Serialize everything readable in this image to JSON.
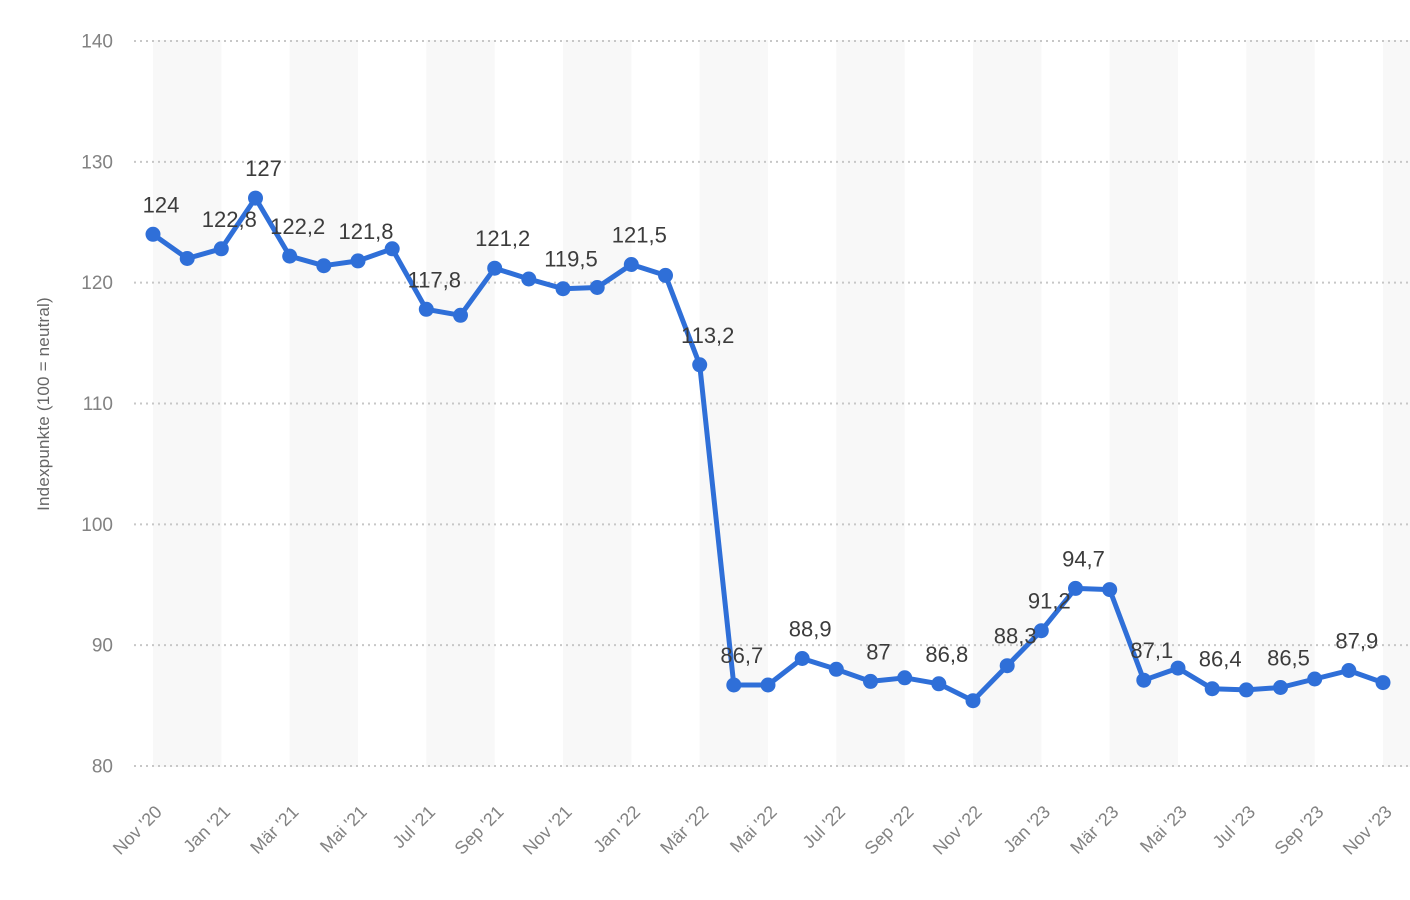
{
  "chart_data": {
    "type": "line",
    "title": "",
    "xlabel": "",
    "ylabel": "Indexpunkte (100 = neutral)",
    "ylim": [
      80,
      140
    ],
    "yticks": [
      80,
      90,
      100,
      110,
      120,
      130,
      140
    ],
    "grid": "dotted-horizontal",
    "legend": "none",
    "x_categories": [
      "Nov '20",
      "Dez '20",
      "Jan '21",
      "Feb '21",
      "Mär '21",
      "Apr '21",
      "Mai '21",
      "Jun '21",
      "Jul '21",
      "Aug '21",
      "Sep '21",
      "Okt '21",
      "Nov '21",
      "Dez '21",
      "Jan '22",
      "Feb '22",
      "Mär '22",
      "Apr '22",
      "Mai '22",
      "Jun '22",
      "Jul '22",
      "Aug '22",
      "Sep '22",
      "Okt '22",
      "Nov '22",
      "Dez '22",
      "Jan '23",
      "Feb '23",
      "Mär '23",
      "Apr '23",
      "Mai '23",
      "Jun '23",
      "Jul '23",
      "Aug '23",
      "Sep '23",
      "Okt '23",
      "Nov '23"
    ],
    "x_tick_every": 2,
    "x_tick_labels": [
      "Nov '20",
      "Jan '21",
      "Mär '21",
      "Mai '21",
      "Jul '21",
      "Sep '21",
      "Nov '21",
      "Jan '22",
      "Mär '22",
      "Mai '22",
      "Jul '22",
      "Sep '22",
      "Nov '22",
      "Jan '23",
      "Mär '23",
      "Mai '23",
      "Jul '23",
      "Sep '23",
      "Nov '23"
    ],
    "values": [
      124,
      122,
      122.8,
      127,
      122.2,
      121.4,
      121.8,
      122.8,
      117.8,
      117.3,
      121.2,
      120.3,
      119.5,
      119.6,
      121.5,
      120.6,
      113.2,
      86.7,
      86.7,
      88.9,
      88,
      87,
      87.3,
      86.8,
      85.4,
      88.3,
      91.2,
      94.7,
      94.6,
      87.1,
      88.1,
      86.4,
      86.3,
      86.5,
      87.2,
      87.9,
      86.9
    ],
    "point_labels": [
      "124",
      null,
      "122,8",
      "127",
      "122,2",
      null,
      "121,8",
      null,
      "117,8",
      null,
      "121,2",
      null,
      "119,5",
      null,
      "121,5",
      null,
      "113,2",
      "86,7",
      null,
      "88,9",
      null,
      "87",
      null,
      "86,8",
      null,
      "88,3",
      "91,2",
      "94,7",
      null,
      "87,1",
      null,
      "86,4",
      null,
      "86,5",
      null,
      "87,9",
      null
    ]
  },
  "colors": {
    "line": "#2f6fd8",
    "point": "#2f6fd8",
    "band": "#f8f8f8",
    "gridline": "#c7c7c7",
    "data_label": "#3c3c3c",
    "axis_tick_label": "#828282",
    "y_axis_title": "#666666",
    "background": "#ffffff"
  }
}
